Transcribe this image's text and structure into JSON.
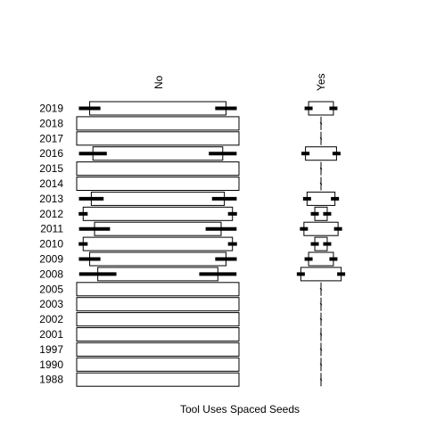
{
  "chart_data": {
    "type": "mosaic",
    "xlabel": "Tool Uses Spaced Seeds",
    "columns": [
      "No",
      "Yes"
    ],
    "rows": [
      {
        "year": "2019",
        "no": 0.84,
        "yes": 0.16,
        "yes_visible": true
      },
      {
        "year": "2018",
        "no": 1.0,
        "yes": 0.0,
        "yes_visible": false
      },
      {
        "year": "2017",
        "no": 1.0,
        "yes": 0.0,
        "yes_visible": false
      },
      {
        "year": "2016",
        "no": 0.8,
        "yes": 0.2,
        "yes_visible": true
      },
      {
        "year": "2015",
        "no": 1.0,
        "yes": 0.0,
        "yes_visible": false
      },
      {
        "year": "2014",
        "no": 1.0,
        "yes": 0.0,
        "yes_visible": false
      },
      {
        "year": "2013",
        "no": 0.82,
        "yes": 0.18,
        "yes_visible": true
      },
      {
        "year": "2012",
        "no": 0.92,
        "yes": 0.08,
        "yes_visible": true
      },
      {
        "year": "2011",
        "no": 0.78,
        "yes": 0.22,
        "yes_visible": true
      },
      {
        "year": "2010",
        "no": 0.92,
        "yes": 0.08,
        "yes_visible": true
      },
      {
        "year": "2009",
        "no": 0.84,
        "yes": 0.16,
        "yes_visible": true
      },
      {
        "year": "2008",
        "no": 0.74,
        "yes": 0.26,
        "yes_visible": true
      },
      {
        "year": "2005",
        "no": 1.0,
        "yes": 0.0,
        "yes_visible": false
      },
      {
        "year": "2003",
        "no": 1.0,
        "yes": 0.0,
        "yes_visible": false
      },
      {
        "year": "2002",
        "no": 1.0,
        "yes": 0.0,
        "yes_visible": false
      },
      {
        "year": "2001",
        "no": 1.0,
        "yes": 0.0,
        "yes_visible": false
      },
      {
        "year": "1997",
        "no": 1.0,
        "yes": 0.0,
        "yes_visible": false
      },
      {
        "year": "1990",
        "no": 1.0,
        "yes": 0.0,
        "yes_visible": false
      },
      {
        "year": "1988",
        "no": 1.0,
        "yes": 0.0,
        "yes_visible": false
      }
    ],
    "colors": {
      "box_fill": "#ffffff",
      "box_stroke": "#000000",
      "bar": "#000000"
    }
  }
}
